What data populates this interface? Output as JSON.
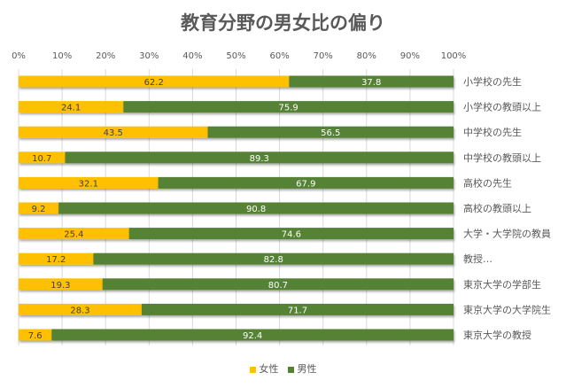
{
  "chart_data": {
    "type": "bar",
    "orientation": "horizontal",
    "stacked": "percent",
    "title": "教育分野の男女比の偏り",
    "categories": [
      "小学校の先生",
      "小学校の教頭以上",
      "中学校の先生",
      "中学校の教頭以上",
      "高校の先生",
      "高校の教頭以上",
      "大学・大学院の教員",
      "教授…",
      "東京大学の学部生",
      "東京大学の大学院生",
      "東京大学の教授"
    ],
    "series": [
      {
        "name": "女性",
        "color": "#FFC000",
        "values": [
          62.2,
          24.1,
          43.5,
          10.7,
          32.1,
          9.2,
          25.4,
          17.2,
          19.3,
          28.3,
          7.6
        ]
      },
      {
        "name": "男性",
        "color": "#548235",
        "values": [
          37.8,
          75.9,
          56.5,
          89.3,
          67.9,
          90.8,
          74.6,
          82.8,
          80.7,
          71.7,
          92.4
        ]
      }
    ],
    "xlim": [
      0,
      100
    ],
    "xticks": [
      "0%",
      "10%",
      "20%",
      "30%",
      "40%",
      "50%",
      "60%",
      "70%",
      "80%",
      "90%",
      "100%"
    ],
    "x_axis_position": "top",
    "category_labels_position": "right",
    "grid": true,
    "legend": "bottom"
  }
}
